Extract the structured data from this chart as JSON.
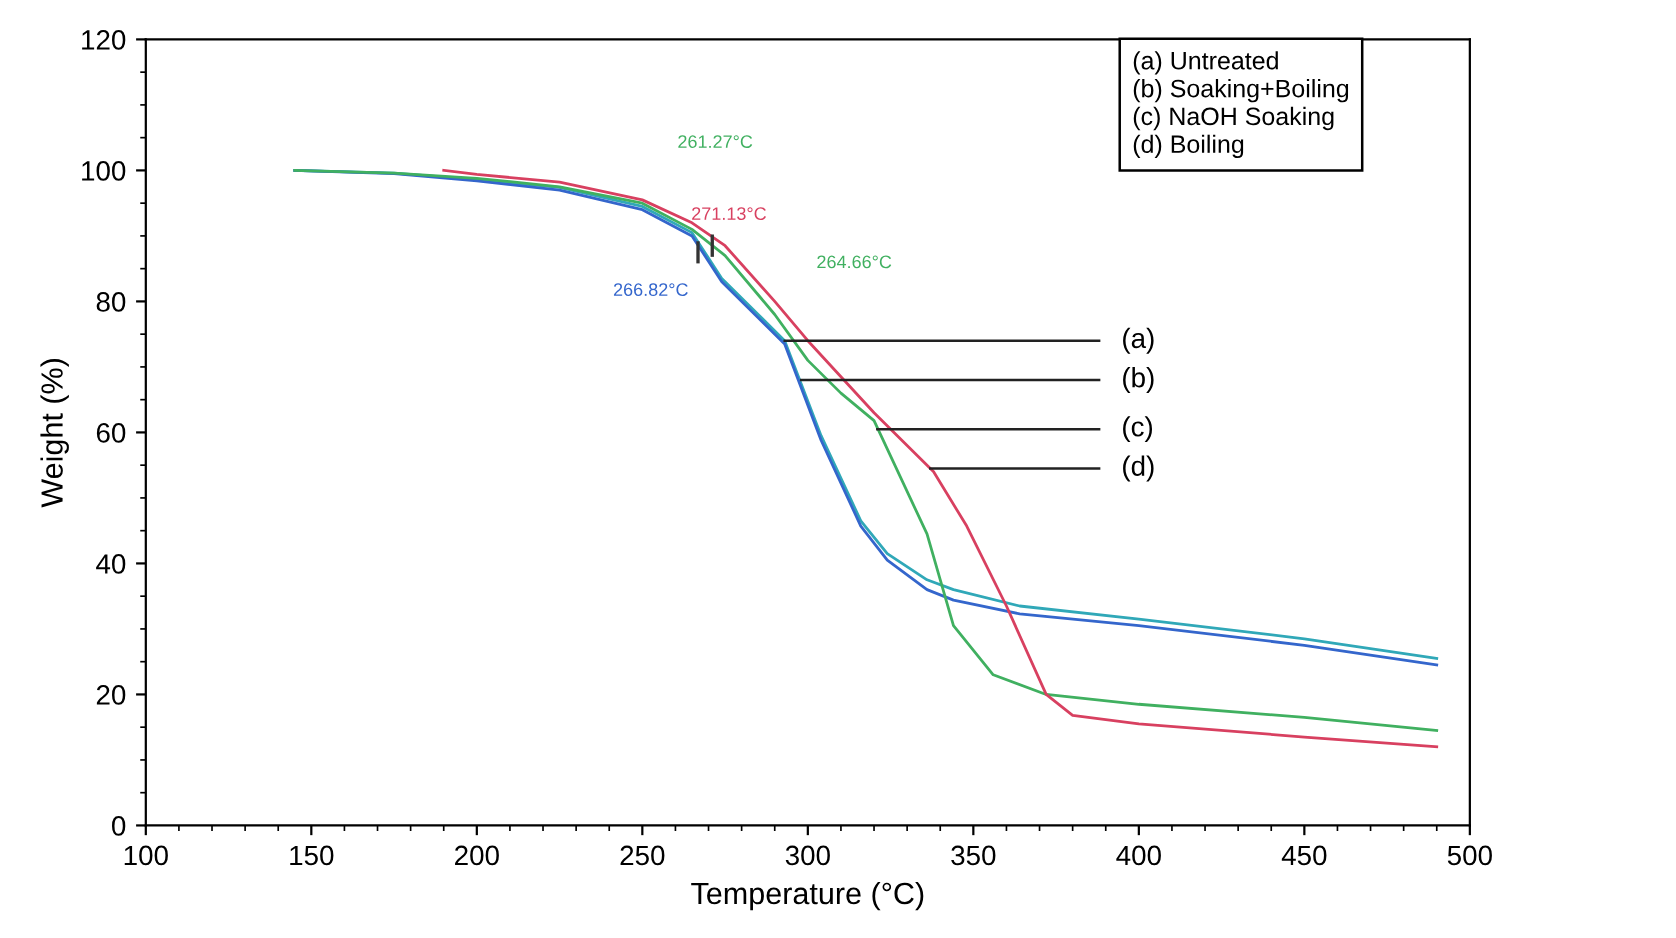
{
  "chart_data": {
    "type": "line",
    "xlabel": "Temperature (°C)",
    "ylabel": "Weight (%)",
    "xlim": [
      100,
      500
    ],
    "xticks": [
      100,
      150,
      200,
      250,
      300,
      350,
      400,
      450,
      500
    ],
    "ylim": [
      0,
      120
    ],
    "yticks": [
      0,
      20,
      40,
      60,
      80,
      100,
      120
    ],
    "grid": false,
    "legend": false,
    "line_style": "solid",
    "marker": "none",
    "series": [
      {
        "color": "#30a8b8",
        "x": [
          145,
          175,
          200,
          225,
          250,
          265,
          274,
          285,
          293,
          304,
          316,
          324,
          336,
          344,
          364,
          400,
          450,
          490
        ],
        "values": [
          100,
          99.6,
          98.6,
          97.4,
          94.5,
          90.5,
          83.5,
          78,
          74,
          59.5,
          46.5,
          41.5,
          37.5,
          36,
          33.5,
          31.5,
          28.5,
          25.5
        ]
      },
      {
        "color": "#3466cc",
        "x": [
          145,
          175,
          200,
          225,
          250,
          265,
          274,
          285,
          293,
          304,
          316,
          324,
          336,
          344,
          364,
          400,
          450,
          490
        ],
        "values": [
          100,
          99.5,
          98.4,
          97,
          94,
          90,
          83,
          77.5,
          73.5,
          58.8,
          45.7,
          40.5,
          36,
          34.4,
          32.3,
          30.5,
          27.5,
          24.5
        ]
      },
      {
        "color": "#40b060",
        "x": [
          145,
          175,
          200,
          225,
          250,
          265,
          275,
          290,
          300,
          310,
          320,
          336,
          344,
          356,
          372,
          400,
          450,
          490
        ],
        "values": [
          100,
          99.6,
          98.8,
          97.5,
          95,
          91,
          87,
          78,
          71,
          66,
          61.8,
          44.5,
          30.5,
          23,
          20,
          18.5,
          16.5,
          14.5
        ]
      },
      {
        "color": "#d84060",
        "x": [
          190,
          200,
          225,
          250,
          265,
          275,
          290,
          300,
          320,
          338,
          348,
          360,
          372,
          380,
          400,
          450,
          490
        ],
        "values": [
          100,
          99.4,
          98.2,
          95.5,
          92,
          88.5,
          80,
          74,
          63,
          54,
          45.7,
          33.5,
          20,
          16.8,
          15.5,
          13.5,
          12
        ]
      }
    ],
    "annotations": [
      "261.27°C",
      {
        "text": "271.13°C",
        "x": 271.13,
        "y": 88.5
      },
      "264.66°C",
      {
        "text": "266.82°C",
        "x": 266.82,
        "y": 87.5
      },
      {
        "text": "(a)",
        "x": 293,
        "y": 74
      },
      {
        "text": "(b)",
        "x": 298,
        "y": 68
      },
      {
        "text": "(c)",
        "x": 321,
        "y": 60.5
      },
      {
        "text": "(d)",
        "x": 337,
        "y": 54.5
      },
      "(a) Untreated",
      "(b) Soaking+Boiling",
      "(c) NaOH Soaking",
      "(d) Boiling"
    ]
  }
}
